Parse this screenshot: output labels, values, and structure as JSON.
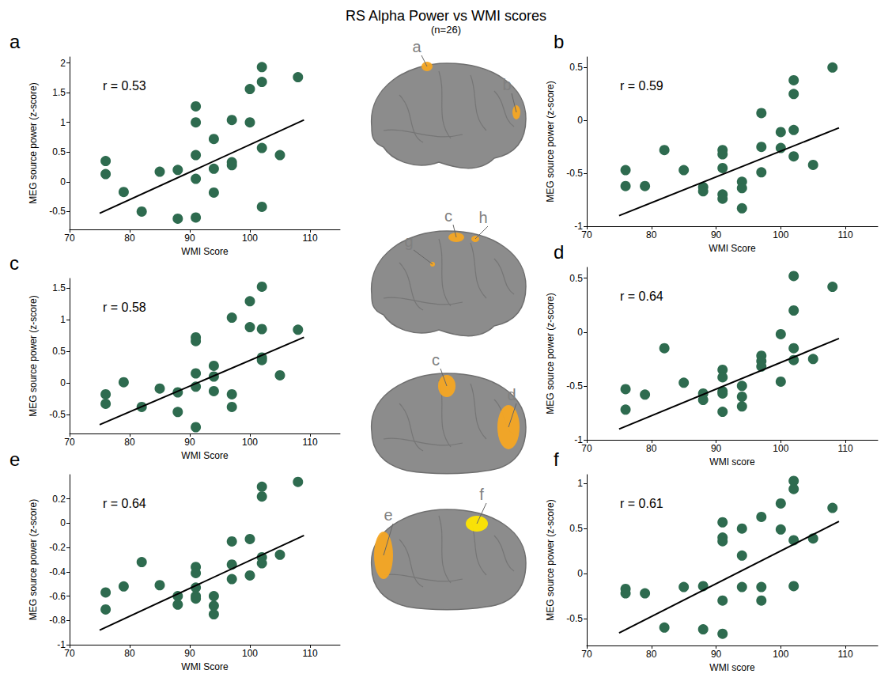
{
  "title": "RS Alpha Power vs WMI scores",
  "subtitle": "(n=26)",
  "chart_data": [
    {
      "type": "scatter",
      "panel": "a",
      "annotation": "r = 0.53",
      "xlabel": "WMI Score",
      "ylabel": "MEG source power (z-score)",
      "color": "#2e6b4f",
      "marker": "circle",
      "grid": false,
      "x": [
        76,
        76,
        79,
        82,
        85,
        88,
        88,
        91,
        91,
        91,
        91,
        91,
        94,
        94,
        94,
        97,
        97,
        97,
        100,
        100,
        102,
        102,
        102,
        102,
        105,
        108
      ],
      "values": [
        0.35,
        0.13,
        -0.17,
        -0.5,
        0.17,
        0.2,
        -0.62,
        1.27,
        1.0,
        0.45,
        0.05,
        -0.6,
        0.72,
        0.22,
        -0.18,
        1.04,
        0.33,
        0.28,
        1.56,
        1.0,
        1.93,
        1.68,
        0.57,
        -0.42,
        0.45,
        1.76
      ],
      "fit": {
        "x": [
          75,
          109
        ],
        "y": [
          -0.53,
          1.04
        ],
        "color": "#000000"
      },
      "xlim": [
        70,
        115
      ],
      "xticks": [
        70,
        80,
        90,
        100,
        110
      ],
      "ylim": [
        -0.8,
        2.1
      ],
      "yticks": [
        -0.5,
        0,
        0.5,
        1,
        1.5,
        2
      ]
    },
    {
      "type": "scatter",
      "panel": "b",
      "annotation": "r = 0.59",
      "xlabel": "WMI Score",
      "ylabel": "MEG source power (z-score)",
      "color": "#2e6b4f",
      "marker": "circle",
      "grid": false,
      "x": [
        76,
        76,
        79,
        82,
        85,
        88,
        88,
        91,
        91,
        91,
        91,
        91,
        94,
        94,
        94,
        97,
        97,
        97,
        100,
        100,
        102,
        102,
        102,
        102,
        105,
        108
      ],
      "values": [
        -0.47,
        -0.62,
        -0.62,
        -0.28,
        -0.47,
        -0.63,
        -0.67,
        -0.28,
        -0.32,
        -0.45,
        -0.7,
        -0.74,
        -0.58,
        -0.64,
        -0.83,
        0.07,
        -0.25,
        -0.49,
        -0.11,
        -0.26,
        0.38,
        0.25,
        -0.09,
        -0.34,
        -0.42,
        0.5
      ],
      "fit": {
        "x": [
          75,
          109
        ],
        "y": [
          -0.9,
          -0.07
        ],
        "color": "#000000"
      },
      "xlim": [
        70,
        115
      ],
      "xticks": [
        70,
        80,
        90,
        100,
        110
      ],
      "ylim": [
        -1,
        0.6
      ],
      "yticks": [
        -1,
        -0.5,
        0,
        0.5
      ]
    },
    {
      "type": "scatter",
      "panel": "c",
      "annotation": "r = 0.58",
      "xlabel": "WMI Score",
      "ylabel": "MEG source power (z-score)",
      "color": "#2e6b4f",
      "marker": "circle",
      "grid": false,
      "x": [
        76,
        76,
        79,
        82,
        85,
        88,
        88,
        91,
        91,
        91,
        91,
        91,
        94,
        94,
        94,
        97,
        97,
        97,
        100,
        100,
        102,
        102,
        102,
        102,
        105,
        108
      ],
      "values": [
        -0.18,
        -0.33,
        0.01,
        -0.38,
        -0.09,
        -0.15,
        -0.46,
        0.72,
        0.66,
        0.15,
        -0.06,
        -0.7,
        0.27,
        0.1,
        -0.13,
        1.03,
        -0.18,
        -0.38,
        1.29,
        0.88,
        1.52,
        0.85,
        0.4,
        0.36,
        0.12,
        0.84
      ],
      "fit": {
        "x": [
          75,
          109
        ],
        "y": [
          -0.66,
          0.72
        ],
        "color": "#000000"
      },
      "xlim": [
        70,
        115
      ],
      "xticks": [
        70,
        80,
        90,
        100,
        110
      ],
      "ylim": [
        -0.8,
        1.65
      ],
      "yticks": [
        -0.5,
        0,
        0.5,
        1,
        1.5
      ]
    },
    {
      "type": "scatter",
      "panel": "d",
      "annotation": "r = 0.64",
      "xlabel": "WMI score",
      "ylabel": "MEG source power (z-score)",
      "color": "#2e6b4f",
      "marker": "circle",
      "grid": false,
      "x": [
        76,
        76,
        79,
        82,
        85,
        88,
        88,
        91,
        91,
        91,
        91,
        91,
        94,
        94,
        94,
        97,
        97,
        97,
        100,
        100,
        102,
        102,
        102,
        102,
        105,
        108
      ],
      "values": [
        -0.53,
        -0.72,
        -0.58,
        -0.15,
        -0.47,
        -0.57,
        -0.63,
        -0.35,
        -0.42,
        -0.55,
        -0.57,
        -0.74,
        -0.5,
        -0.6,
        -0.69,
        -0.22,
        -0.27,
        -0.32,
        -0.02,
        -0.46,
        0.52,
        0.2,
        -0.15,
        -0.26,
        -0.25,
        0.42
      ],
      "fit": {
        "x": [
          75,
          109
        ],
        "y": [
          -0.9,
          -0.06
        ],
        "color": "#000000"
      },
      "xlim": [
        70,
        115
      ],
      "xticks": [
        70,
        80,
        90,
        100,
        110
      ],
      "ylim": [
        -1,
        0.6
      ],
      "yticks": [
        -1,
        -0.5,
        0,
        0.5
      ]
    },
    {
      "type": "scatter",
      "panel": "e",
      "annotation": "r = 0.64",
      "xlabel": "WMI Score",
      "ylabel": "MEG source power (z-score)",
      "color": "#2e6b4f",
      "marker": "circle",
      "grid": false,
      "x": [
        76,
        76,
        79,
        82,
        85,
        88,
        88,
        91,
        91,
        91,
        91,
        91,
        94,
        94,
        94,
        97,
        97,
        97,
        100,
        100,
        102,
        102,
        102,
        102,
        105,
        108
      ],
      "values": [
        -0.57,
        -0.71,
        -0.52,
        -0.32,
        -0.51,
        -0.6,
        -0.67,
        -0.36,
        -0.41,
        -0.53,
        -0.6,
        -0.62,
        -0.6,
        -0.68,
        -0.75,
        -0.15,
        -0.34,
        -0.46,
        -0.13,
        -0.43,
        0.3,
        0.22,
        -0.28,
        -0.33,
        -0.26,
        0.34
      ],
      "fit": {
        "x": [
          75,
          109
        ],
        "y": [
          -0.88,
          -0.1
        ],
        "color": "#000000"
      },
      "xlim": [
        70,
        115
      ],
      "xticks": [
        70,
        80,
        90,
        100,
        110
      ],
      "ylim": [
        -1,
        0.4
      ],
      "yticks": [
        -1,
        -0.8,
        -0.6,
        -0.4,
        -0.2,
        0,
        0.2
      ]
    },
    {
      "type": "scatter",
      "panel": "f",
      "annotation": "r = 0.61",
      "xlabel": "WMI score",
      "ylabel": "MEG source power (z-score)",
      "color": "#2e6b4f",
      "marker": "circle",
      "grid": false,
      "x": [
        76,
        76,
        79,
        82,
        85,
        88,
        88,
        91,
        91,
        91,
        91,
        91,
        94,
        94,
        94,
        97,
        97,
        97,
        100,
        100,
        102,
        102,
        102,
        102,
        105,
        108
      ],
      "values": [
        -0.17,
        -0.22,
        -0.22,
        -0.6,
        -0.15,
        -0.14,
        -0.62,
        0.57,
        0.4,
        0.36,
        -0.3,
        -0.67,
        0.5,
        0.2,
        -0.15,
        0.63,
        -0.15,
        -0.3,
        0.78,
        0.49,
        1.03,
        0.94,
        0.37,
        -0.14,
        0.39,
        0.73
      ],
      "fit": {
        "x": [
          75,
          109
        ],
        "y": [
          -0.66,
          0.58
        ],
        "color": "#000000"
      },
      "xlim": [
        70,
        115
      ],
      "xticks": [
        70,
        80,
        90,
        100,
        110
      ],
      "ylim": [
        -0.8,
        1.1
      ],
      "yticks": [
        -0.5,
        0,
        0.5,
        1
      ]
    }
  ],
  "brain_views": [
    {
      "labels": [
        "a",
        "b"
      ]
    },
    {
      "labels": [
        "g",
        "c",
        "h"
      ]
    },
    {
      "labels": [
        "c",
        "d"
      ]
    },
    {
      "labels": [
        "e",
        "f"
      ]
    }
  ]
}
